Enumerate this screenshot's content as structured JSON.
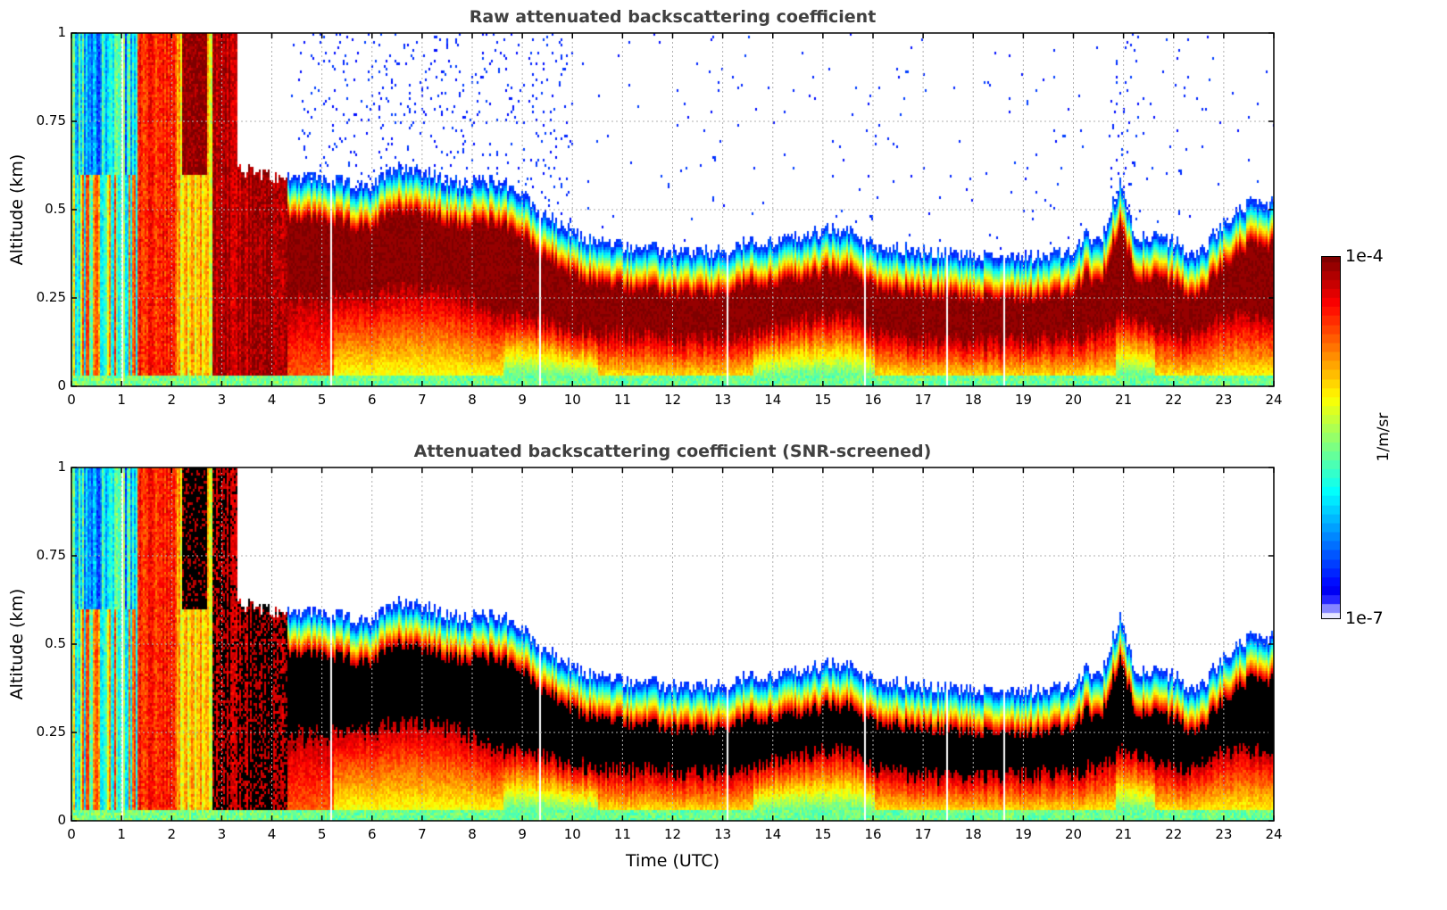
{
  "chart_data": [
    {
      "type": "heatmap",
      "title": "Raw attenuated backscattering coefficient",
      "xlabel": "",
      "ylabel": "Altitude (km)",
      "xlim": [
        0,
        24
      ],
      "ylim": [
        0,
        1
      ],
      "xticks": [
        "0",
        "1",
        "2",
        "3",
        "4",
        "5",
        "6",
        "7",
        "8",
        "9",
        "10",
        "11",
        "12",
        "13",
        "14",
        "15",
        "16",
        "17",
        "18",
        "19",
        "20",
        "21",
        "22",
        "23",
        "24"
      ],
      "yticks": [
        "0",
        "0.25",
        "0.5",
        "0.75",
        "1"
      ],
      "grid": true,
      "screened": false
    },
    {
      "type": "heatmap",
      "title": "Attenuated backscattering coefficient (SNR-screened)",
      "xlabel": "Time (UTC)",
      "ylabel": "Altitude (km)",
      "xlim": [
        0,
        24
      ],
      "ylim": [
        0,
        1
      ],
      "xticks": [
        "0",
        "1",
        "2",
        "3",
        "4",
        "5",
        "6",
        "7",
        "8",
        "9",
        "10",
        "11",
        "12",
        "13",
        "14",
        "15",
        "16",
        "17",
        "18",
        "19",
        "20",
        "21",
        "22",
        "23",
        "24"
      ],
      "yticks": [
        "0",
        "0.25",
        "0.5",
        "0.75",
        "1"
      ],
      "grid": true,
      "screened": true
    }
  ],
  "layer_profile": {
    "hours": [
      0,
      3.3,
      4.3,
      5,
      6,
      6.3,
      6.8,
      7.5,
      8,
      8.6,
      9,
      9.5,
      10,
      10.5,
      11,
      12,
      13,
      13.5,
      14,
      15,
      15.5,
      16,
      17,
      18,
      19,
      20,
      20.2,
      20.5,
      20.9,
      21.2,
      22,
      22.4,
      23,
      23.5,
      24
    ],
    "top_km": [
      0.62,
      0.62,
      0.58,
      0.57,
      0.54,
      0.6,
      0.6,
      0.56,
      0.56,
      0.56,
      0.52,
      0.46,
      0.41,
      0.39,
      0.38,
      0.36,
      0.36,
      0.39,
      0.39,
      0.42,
      0.42,
      0.38,
      0.36,
      0.35,
      0.35,
      0.36,
      0.41,
      0.38,
      0.56,
      0.41,
      0.39,
      0.34,
      0.45,
      0.5,
      0.5
    ],
    "base_km": [
      0.3,
      0.3,
      0.25,
      0.25,
      0.26,
      0.28,
      0.28,
      0.27,
      0.24,
      0.2,
      0.2,
      0.18,
      0.16,
      0.15,
      0.15,
      0.14,
      0.14,
      0.15,
      0.17,
      0.2,
      0.2,
      0.15,
      0.13,
      0.13,
      0.13,
      0.14,
      0.15,
      0.15,
      0.2,
      0.18,
      0.15,
      0.15,
      0.2,
      0.2,
      0.2
    ]
  },
  "colorbar": {
    "label": "1/m/sr",
    "max_label": "1e-4",
    "min_label": "1e-7",
    "vmin": 1e-07,
    "vmax": 0.0001,
    "scale": "log",
    "colormap": "jet"
  }
}
